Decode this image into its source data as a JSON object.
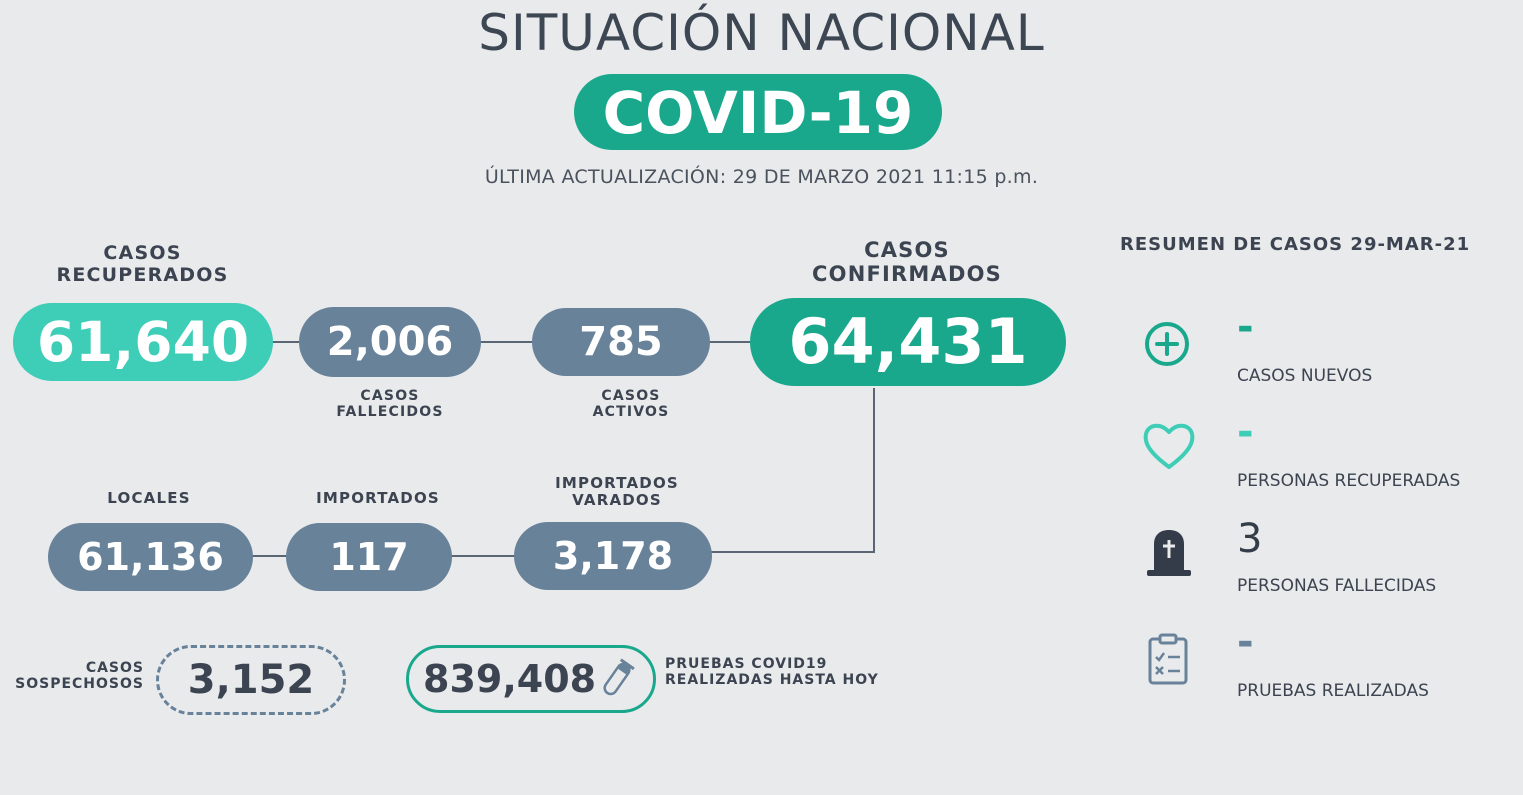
{
  "header": {
    "title": "SITUACIÓN NACIONAL",
    "badge": "COVID-19",
    "updated": "ÚLTIMA ACTUALIZACIÓN: 29 DE MARZO 2021 11:15 p.m."
  },
  "stats": {
    "recuperados": {
      "label_1": "CASOS",
      "label_2": "RECUPERADOS",
      "value": "61,640"
    },
    "fallecidos": {
      "label_1": "CASOS",
      "label_2": "FALLECIDOS",
      "value": "2,006"
    },
    "activos": {
      "label_1": "CASOS",
      "label_2": "ACTIVOS",
      "value": "785"
    },
    "confirmados": {
      "label_1": "CASOS",
      "label_2": "CONFIRMADOS",
      "value": "64,431"
    },
    "locales": {
      "label": "LOCALES",
      "value": "61,136"
    },
    "importados": {
      "label": "IMPORTADOS",
      "value": "117"
    },
    "importados_varados": {
      "label_1": "IMPORTADOS",
      "label_2": "VARADOS",
      "value": "3,178"
    },
    "sospechosos": {
      "label_1": "CASOS",
      "label_2": "SOSPECHOSOS",
      "value": "3,152"
    },
    "pruebas": {
      "label_1": "PRUEBAS COVID19",
      "label_2": "REALIZADAS HASTA HOY",
      "value": "839,408"
    }
  },
  "summary": {
    "title": "RESUMEN DE CASOS 29-MAR-21",
    "items": [
      {
        "icon": "plus-circle-icon",
        "value": "-",
        "label": "CASOS NUEVOS"
      },
      {
        "icon": "heart-icon",
        "value": "-",
        "label": "PERSONAS RECUPERADAS"
      },
      {
        "icon": "tombstone-icon",
        "value": "3",
        "label": "PERSONAS FALLECIDAS"
      },
      {
        "icon": "clipboard-checklist-icon",
        "value": "-",
        "label": "PRUEBAS REALIZADAS"
      }
    ]
  },
  "colors": {
    "background": "#e9eaec",
    "green": "#1aa88d",
    "teal": "#3ecdb6",
    "slate": "#68829a",
    "text": "#3b4450"
  }
}
